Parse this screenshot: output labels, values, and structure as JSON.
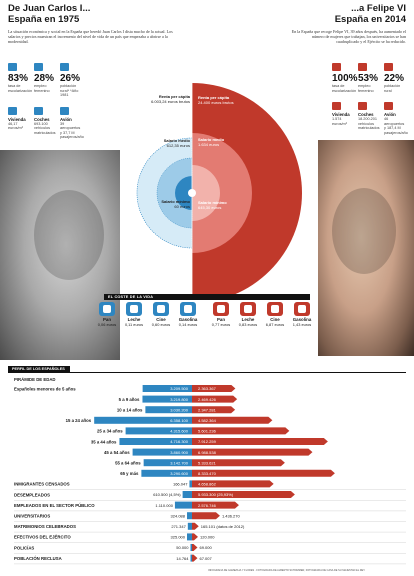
{
  "header": {
    "left_title_1": "De Juan Carlos I...",
    "left_title_2": "España en 1975",
    "right_title_1": "...a Felipe VI",
    "right_title_2": "España en 2014",
    "left_intro": "La situación económica y social en la España que heredó Juan Carlos I dista mucho de la actual. Los salarios y precios muestran el incremento del nivel de vida de un país que empezaba a abrirse a la modernidad.",
    "right_intro": "En la España que recoge Felipe VI, 39 años después, ha aumentado el número de mujeres que trabajan, los universitarios se han cuadruplicado y el Ejército se ha reducido."
  },
  "stats_1975": [
    {
      "value": "83%",
      "label": "tasa de escolarización",
      "icon": "school-icon",
      "color": "blue"
    },
    {
      "value": "28%",
      "label": "empleo femenino",
      "icon": "woman-icon",
      "color": "blue"
    },
    {
      "value": "26%",
      "label": "población rural* *Año 1981",
      "icon": "tree-icon",
      "color": "blue"
    },
    {
      "value": "Vivienda",
      "label": "46,17 euros/m²",
      "icon": "house-icon",
      "color": "blue"
    },
    {
      "value": "Coches",
      "label": "693.100 vehículos matriculados",
      "icon": "car-icon",
      "color": "blue"
    },
    {
      "value": "Avión",
      "label": "39 aeropuertos y 37,7 M pasajeros/año",
      "icon": "plane-icon",
      "color": "blue"
    }
  ],
  "stats_2014": [
    {
      "value": "100%",
      "label": "tasa de escolarización",
      "icon": "school-icon",
      "color": "red"
    },
    {
      "value": "53%",
      "label": "empleo femenino",
      "icon": "woman-icon",
      "color": "red"
    },
    {
      "value": "22%",
      "label": "población rural",
      "icon": "tree-icon",
      "color": "red"
    },
    {
      "value": "Vivienda",
      "label": "1.574 euros/m²",
      "icon": "house-icon",
      "color": "red"
    },
    {
      "value": "Coches",
      "label": "18.200.201 vehículos matriculados",
      "icon": "car-icon",
      "color": "red"
    },
    {
      "value": "Avión",
      "label": "46 aeropuertos y 187,4 M pasajeros/año",
      "icon": "plane-icon",
      "color": "red"
    }
  ],
  "radial": {
    "renta_1975_label": "Renta per cápita",
    "renta_1975_value": "6.003,24 euros brutos",
    "salario_medio_1975_label": "Salario medio",
    "salario_medio_1975_value": "612,35 euros",
    "salario_minimo_1975_label": "Salario mínimo",
    "salario_minimo_1975_value": "60 euros",
    "renta_2014_label": "Renta per cápita",
    "renta_2014_value": "24.400 euros brutos",
    "salario_medio_2014_label": "Salario medio",
    "salario_medio_2014_value": "1.634 euros",
    "salario_minimo_2014_label": "Salario mínimo",
    "salario_minimo_2014_value": "645,30 euros"
  },
  "costs": {
    "title": "EL COSTE DE LA VIDA",
    "items_1975": [
      {
        "name": "Pan",
        "value": "0,06 euros",
        "icon": "bread-icon"
      },
      {
        "name": "Leche",
        "value": "0,11 euros",
        "icon": "milk-icon"
      },
      {
        "name": "Cine",
        "value": "0,60 euros",
        "icon": "cinema-icon"
      },
      {
        "name": "Gasolina",
        "value": "0,14 euros",
        "icon": "fuel-icon"
      }
    ],
    "items_2014": [
      {
        "name": "Pan",
        "value": "0,77 euros",
        "icon": "bread-icon"
      },
      {
        "name": "Leche",
        "value": "0,83 euros",
        "icon": "milk-icon"
      },
      {
        "name": "Cine",
        "value": "6,87 euros",
        "icon": "cinema-icon"
      },
      {
        "name": "Gasolina",
        "value": "1,43 euros",
        "icon": "fuel-icon"
      }
    ]
  },
  "profile": {
    "title": "PERFIL DE LOS ESPAÑOLES"
  },
  "credit": "INFOGRAFÍA DE GAMEZ/LIA Y FLORES · FOTOGRAFÍA DE ALBERTO SCHOMMER, FOTOGRAFÍA DE CASA DE SU MAJESTAD EL REY",
  "colors": {
    "blue": "#2e86c1",
    "red": "#c0392b",
    "ring_blue": "#9dcbe8",
    "ring_red": "#e37b72"
  },
  "chart_data": {
    "type": "bar",
    "orientation": "horizontal-diverging",
    "title": "PIRÁMIDE DE EDAD",
    "subtitle": "Españoles menores de 5 años",
    "series": [
      {
        "name": "1975",
        "color": "#2e86c1",
        "values": [
          3209500,
          3219800,
          3030200,
          6358100,
          4315600,
          4716300,
          3860900,
          3142700,
          3290600,
          166047,
          610500,
          1110000,
          324088,
          271347,
          325000,
          50000,
          14764
        ]
      },
      {
        "name": "2014",
        "color": "#c0392b",
        "values": [
          2363367,
          2469426,
          2347281,
          4582364,
          5601236,
          7912259,
          6988538,
          5333621,
          8333470,
          4658862,
          5933300,
          2576746,
          1436270,
          165101,
          120000,
          69000,
          67007
        ]
      }
    ],
    "categories": [
      "Españoles menores de 5 años",
      "5 a 9 años",
      "10 a 14 años",
      "15 a 24 años",
      "25 a 34 años",
      "35 a 44 años",
      "45 a 54 años",
      "55 a 64 años",
      "65 y más",
      "INMIGRANTES CENSADOS",
      "DESEMPLEADOS",
      "EMPLEADOS EN EL SECTOR PÚBLICO",
      "UNIVERSITARIOS",
      "MATRIMONIOS CELEBRADOS",
      "EFECTIVOS DEL EJÉRCITO",
      "POLICÍAS",
      "POBLACIÓN RECLUSA"
    ],
    "display_1975": [
      "3.209.500",
      "3.219.800",
      "3.030.200",
      "6.358.100",
      "4.315.600",
      "4.716.300",
      "3.860.900",
      "3.142.700",
      "3.290.600",
      "166.047",
      "610.500 (4,5%)",
      "1.110.000",
      "324.088",
      "271.347",
      "325.000",
      "50.000",
      "14.764"
    ],
    "display_2014": [
      "2.363.367",
      "2.469.426",
      "2.347.281",
      "4.582.364",
      "5.601.236",
      "7.912.259",
      "6.988.538",
      "5.333.621",
      "8.333.470",
      "4.658.862",
      "5.933.300 (25,93%)",
      "2.576.746",
      "1.436.270",
      "165.101 (datos de 2012)",
      "120.000",
      "69.000",
      "67.007"
    ]
  }
}
